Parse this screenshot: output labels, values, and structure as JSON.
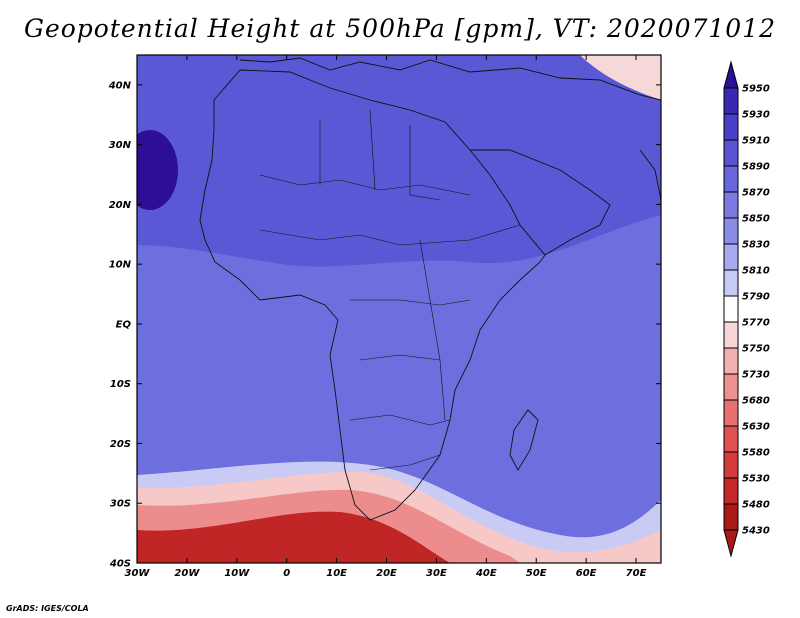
{
  "title": "Geopotential Height at 500hPa [gpm], VT: 2020071012",
  "credit": "GrADS: IGES/COLA",
  "map": {
    "lat_labels": [
      "40N",
      "30N",
      "20N",
      "10N",
      "EQ",
      "10S",
      "20S",
      "30S",
      "40S"
    ],
    "lon_labels": [
      "30W",
      "20W",
      "10W",
      "0",
      "10E",
      "20E",
      "30E",
      "40E",
      "50E",
      "60E",
      "70E"
    ],
    "extent": {
      "lon_min": -30,
      "lon_max": 75,
      "lat_min": -40,
      "lat_max": 45
    }
  },
  "colorbar": {
    "labels": [
      "5950",
      "5930",
      "5910",
      "5890",
      "5870",
      "5850",
      "5830",
      "5810",
      "5790",
      "5770",
      "5750",
      "5730",
      "5680",
      "5630",
      "5580",
      "5530",
      "5480",
      "5430"
    ],
    "colors": [
      "#2c0f96",
      "#3a28b4",
      "#4a3fc8",
      "#5a54d4",
      "#6867dc",
      "#7a7ae2",
      "#8a8cea",
      "#a6aaf0",
      "#c8caf6",
      "#ffffff",
      "#f8d6d6",
      "#f4b0b0",
      "#ee9090",
      "#e87070",
      "#e05050",
      "#d43c3c",
      "#c42828",
      "#ab1818"
    ]
  },
  "field_colors": {
    "bg": "#6e6fde",
    "north": "#5a58d4",
    "west_high": "#2c0f96",
    "southlow_outer": "#f6c8c8",
    "southlow_mid": "#ec8c8c",
    "southlow_core": "#c02626",
    "light_band": "#c9cbf5",
    "ne_corner": "#f6d8d8"
  }
}
